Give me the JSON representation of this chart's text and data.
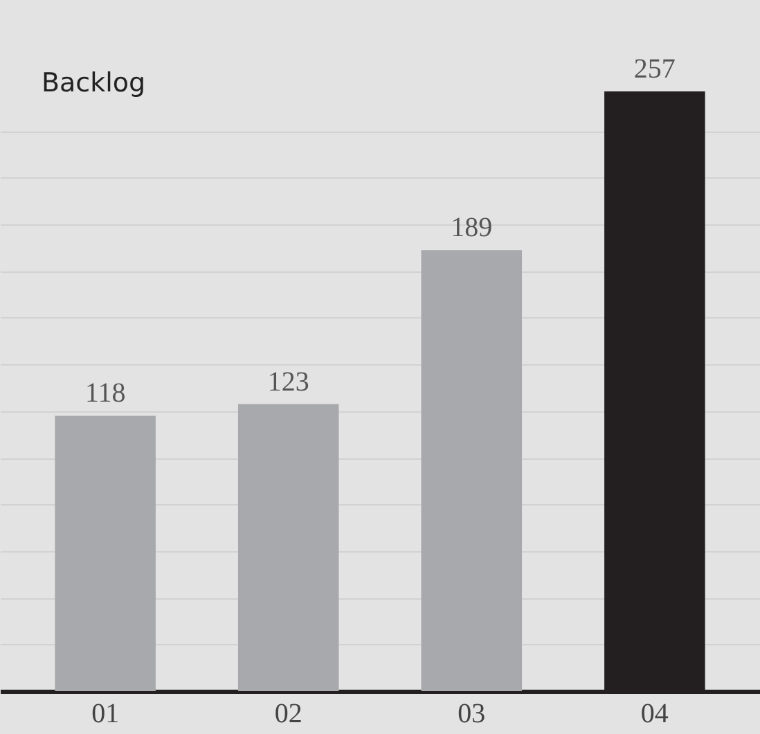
{
  "chart_data": {
    "type": "bar",
    "title": "Backlog",
    "categories": [
      "01",
      "02",
      "03",
      "04"
    ],
    "values": [
      118,
      123,
      189,
      257
    ],
    "colors": [
      "#a8a9ad",
      "#a8a9ad",
      "#a8a9ad",
      "#231f20"
    ],
    "data_labels": true,
    "yticks": [
      {
        "value": 20,
        "label": null
      },
      {
        "value": 40,
        "label": null
      },
      {
        "value": 60,
        "label": null
      },
      {
        "value": 80,
        "label": null
      },
      {
        "value": 100,
        "label": null
      },
      {
        "value": 120,
        "label": null
      },
      {
        "value": 140,
        "label": null
      },
      {
        "value": 160,
        "label": null
      },
      {
        "value": 180,
        "label": null
      },
      {
        "value": 200,
        "label": null
      },
      {
        "value": 220,
        "label": null
      },
      {
        "value": 240,
        "label": null
      }
    ],
    "grid": "y",
    "tick_labels": "x",
    "legend": false
  }
}
